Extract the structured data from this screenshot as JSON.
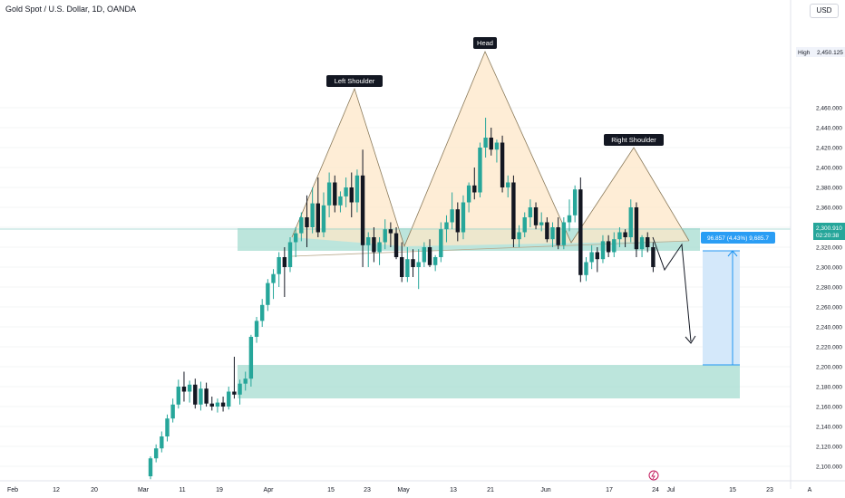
{
  "header": {
    "symbol_title": "Gold Spot / U.S. Dollar, 1D, OANDA",
    "currency_button": "USD"
  },
  "price_scale": {
    "high_label": "High",
    "high_value": "2,450.125",
    "current_price": "2,300.910",
    "countdown": "02:20:38"
  },
  "measure": {
    "label": "96.857 (4.43%) 9,685.7"
  },
  "pattern_labels": {
    "left_shoulder": "Left Shoulder",
    "head": "Head",
    "right_shoulder": "Right Shoulder"
  },
  "colors": {
    "bull": "#26a69a",
    "bear": "#131722",
    "zone": "#a5dcd0",
    "pattern_fill": "#fde7c8",
    "measure_fill": "#cfe5fa",
    "measure_line": "#2196f3",
    "badge": "#2a9df4"
  },
  "chart_data": {
    "type": "candlestick",
    "y_ticks": [
      2100,
      2120,
      2140,
      2160,
      2180,
      2200,
      2220,
      2240,
      2260,
      2280,
      2300,
      2320,
      2340,
      2360,
      2380,
      2400,
      2420,
      2440,
      2460
    ],
    "y_tick_labels": [
      "2,100.000",
      "2,120.000",
      "2,140.000",
      "2,160.000",
      "2,180.000",
      "2,200.000",
      "2,220.000",
      "2,240.000",
      "2,260.000",
      "2,280.000",
      "2,300.000",
      "2,320.000",
      "2,340.000",
      "2,360.000",
      "2,380.000",
      "2,400.000",
      "2,420.000",
      "2,440.000",
      "2,460.000"
    ],
    "x_tick_labels": [
      "Feb",
      "12",
      "20",
      "Mar",
      "11",
      "19",
      "Apr",
      "15",
      "23",
      "May",
      "13",
      "21",
      "Jun",
      "17",
      "24",
      "Jul",
      "15",
      "23",
      "A"
    ],
    "candles": [
      {
        "o": 2090,
        "h": 2110,
        "l": 2087,
        "c": 2108
      },
      {
        "o": 2108,
        "h": 2122,
        "l": 2104,
        "c": 2118
      },
      {
        "o": 2118,
        "h": 2135,
        "l": 2114,
        "c": 2130
      },
      {
        "o": 2130,
        "h": 2152,
        "l": 2125,
        "c": 2148
      },
      {
        "o": 2148,
        "h": 2168,
        "l": 2144,
        "c": 2162
      },
      {
        "o": 2162,
        "h": 2187,
        "l": 2158,
        "c": 2180
      },
      {
        "o": 2180,
        "h": 2195,
        "l": 2165,
        "c": 2175
      },
      {
        "o": 2175,
        "h": 2186,
        "l": 2164,
        "c": 2182
      },
      {
        "o": 2182,
        "h": 2188,
        "l": 2158,
        "c": 2162
      },
      {
        "o": 2162,
        "h": 2185,
        "l": 2156,
        "c": 2178
      },
      {
        "o": 2178,
        "h": 2184,
        "l": 2160,
        "c": 2163
      },
      {
        "o": 2163,
        "h": 2170,
        "l": 2156,
        "c": 2160
      },
      {
        "o": 2160,
        "h": 2168,
        "l": 2154,
        "c": 2164
      },
      {
        "o": 2164,
        "h": 2170,
        "l": 2155,
        "c": 2160
      },
      {
        "o": 2160,
        "h": 2180,
        "l": 2157,
        "c": 2175
      },
      {
        "o": 2175,
        "h": 2210,
        "l": 2168,
        "c": 2172
      },
      {
        "o": 2172,
        "h": 2187,
        "l": 2162,
        "c": 2183
      },
      {
        "o": 2183,
        "h": 2195,
        "l": 2176,
        "c": 2188
      },
      {
        "o": 2188,
        "h": 2232,
        "l": 2180,
        "c": 2230
      },
      {
        "o": 2230,
        "h": 2250,
        "l": 2224,
        "c": 2246
      },
      {
        "o": 2246,
        "h": 2268,
        "l": 2240,
        "c": 2262
      },
      {
        "o": 2262,
        "h": 2288,
        "l": 2256,
        "c": 2284
      },
      {
        "o": 2284,
        "h": 2298,
        "l": 2268,
        "c": 2293
      },
      {
        "o": 2293,
        "h": 2315,
        "l": 2280,
        "c": 2310
      },
      {
        "o": 2310,
        "h": 2320,
        "l": 2270,
        "c": 2300
      },
      {
        "o": 2300,
        "h": 2330,
        "l": 2295,
        "c": 2325
      },
      {
        "o": 2325,
        "h": 2340,
        "l": 2310,
        "c": 2334
      },
      {
        "o": 2334,
        "h": 2355,
        "l": 2326,
        "c": 2350
      },
      {
        "o": 2350,
        "h": 2372,
        "l": 2320,
        "c": 2340
      },
      {
        "o": 2340,
        "h": 2380,
        "l": 2334,
        "c": 2364
      },
      {
        "o": 2364,
        "h": 2390,
        "l": 2330,
        "c": 2335
      },
      {
        "o": 2335,
        "h": 2375,
        "l": 2330,
        "c": 2362
      },
      {
        "o": 2362,
        "h": 2395,
        "l": 2350,
        "c": 2385
      },
      {
        "o": 2385,
        "h": 2392,
        "l": 2355,
        "c": 2362
      },
      {
        "o": 2362,
        "h": 2376,
        "l": 2355,
        "c": 2371
      },
      {
        "o": 2371,
        "h": 2390,
        "l": 2360,
        "c": 2380
      },
      {
        "o": 2380,
        "h": 2395,
        "l": 2350,
        "c": 2365
      },
      {
        "o": 2365,
        "h": 2398,
        "l": 2355,
        "c": 2392
      },
      {
        "o": 2392,
        "h": 2418,
        "l": 2300,
        "c": 2322
      },
      {
        "o": 2322,
        "h": 2335,
        "l": 2300,
        "c": 2330
      },
      {
        "o": 2330,
        "h": 2340,
        "l": 2305,
        "c": 2315
      },
      {
        "o": 2315,
        "h": 2330,
        "l": 2302,
        "c": 2325
      },
      {
        "o": 2325,
        "h": 2348,
        "l": 2318,
        "c": 2338
      },
      {
        "o": 2338,
        "h": 2345,
        "l": 2320,
        "c": 2334
      },
      {
        "o": 2334,
        "h": 2340,
        "l": 2308,
        "c": 2310
      },
      {
        "o": 2310,
        "h": 2325,
        "l": 2285,
        "c": 2290
      },
      {
        "o": 2290,
        "h": 2320,
        "l": 2285,
        "c": 2308
      },
      {
        "o": 2308,
        "h": 2318,
        "l": 2290,
        "c": 2300
      },
      {
        "o": 2300,
        "h": 2318,
        "l": 2278,
        "c": 2305
      },
      {
        "o": 2305,
        "h": 2325,
        "l": 2300,
        "c": 2320
      },
      {
        "o": 2320,
        "h": 2328,
        "l": 2300,
        "c": 2302
      },
      {
        "o": 2302,
        "h": 2312,
        "l": 2296,
        "c": 2310
      },
      {
        "o": 2310,
        "h": 2345,
        "l": 2305,
        "c": 2338
      },
      {
        "o": 2338,
        "h": 2352,
        "l": 2325,
        "c": 2345
      },
      {
        "o": 2345,
        "h": 2375,
        "l": 2338,
        "c": 2358
      },
      {
        "o": 2358,
        "h": 2365,
        "l": 2326,
        "c": 2335
      },
      {
        "o": 2335,
        "h": 2372,
        "l": 2328,
        "c": 2365
      },
      {
        "o": 2365,
        "h": 2385,
        "l": 2355,
        "c": 2382
      },
      {
        "o": 2382,
        "h": 2400,
        "l": 2368,
        "c": 2375
      },
      {
        "o": 2375,
        "h": 2425,
        "l": 2370,
        "c": 2420
      },
      {
        "o": 2420,
        "h": 2450,
        "l": 2410,
        "c": 2430
      },
      {
        "o": 2430,
        "h": 2440,
        "l": 2412,
        "c": 2418
      },
      {
        "o": 2418,
        "h": 2428,
        "l": 2405,
        "c": 2425
      },
      {
        "o": 2425,
        "h": 2432,
        "l": 2375,
        "c": 2380
      },
      {
        "o": 2380,
        "h": 2392,
        "l": 2370,
        "c": 2385
      },
      {
        "o": 2385,
        "h": 2392,
        "l": 2320,
        "c": 2328
      },
      {
        "o": 2328,
        "h": 2342,
        "l": 2320,
        "c": 2335
      },
      {
        "o": 2335,
        "h": 2355,
        "l": 2330,
        "c": 2350
      },
      {
        "o": 2350,
        "h": 2368,
        "l": 2340,
        "c": 2360
      },
      {
        "o": 2360,
        "h": 2365,
        "l": 2338,
        "c": 2342
      },
      {
        "o": 2342,
        "h": 2355,
        "l": 2336,
        "c": 2345
      },
      {
        "o": 2345,
        "h": 2350,
        "l": 2325,
        "c": 2328
      },
      {
        "o": 2328,
        "h": 2345,
        "l": 2320,
        "c": 2340
      },
      {
        "o": 2340,
        "h": 2350,
        "l": 2318,
        "c": 2322
      },
      {
        "o": 2322,
        "h": 2350,
        "l": 2318,
        "c": 2345
      },
      {
        "o": 2345,
        "h": 2368,
        "l": 2336,
        "c": 2352
      },
      {
        "o": 2352,
        "h": 2382,
        "l": 2345,
        "c": 2378
      },
      {
        "o": 2378,
        "h": 2390,
        "l": 2285,
        "c": 2292
      },
      {
        "o": 2292,
        "h": 2310,
        "l": 2286,
        "c": 2305
      },
      {
        "o": 2305,
        "h": 2322,
        "l": 2298,
        "c": 2315
      },
      {
        "o": 2315,
        "h": 2320,
        "l": 2295,
        "c": 2308
      },
      {
        "o": 2308,
        "h": 2332,
        "l": 2304,
        "c": 2326
      },
      {
        "o": 2326,
        "h": 2332,
        "l": 2310,
        "c": 2315
      },
      {
        "o": 2315,
        "h": 2335,
        "l": 2310,
        "c": 2328
      },
      {
        "o": 2328,
        "h": 2340,
        "l": 2320,
        "c": 2335
      },
      {
        "o": 2335,
        "h": 2338,
        "l": 2320,
        "c": 2330
      },
      {
        "o": 2330,
        "h": 2368,
        "l": 2325,
        "c": 2360
      },
      {
        "o": 2360,
        "h": 2365,
        "l": 2310,
        "c": 2318
      },
      {
        "o": 2318,
        "h": 2332,
        "l": 2310,
        "c": 2330
      },
      {
        "o": 2330,
        "h": 2335,
        "l": 2315,
        "c": 2320
      },
      {
        "o": 2320,
        "h": 2325,
        "l": 2295,
        "c": 2300
      }
    ]
  }
}
